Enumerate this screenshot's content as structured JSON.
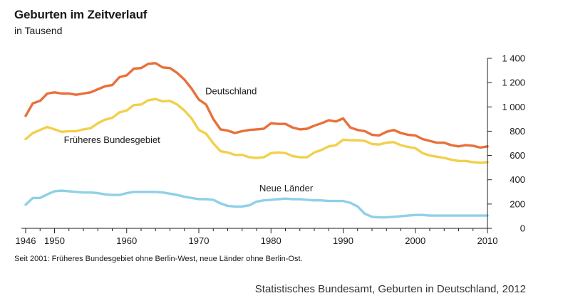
{
  "chart_data": {
    "type": "line",
    "title": "Geburten im Zeitverlauf",
    "subtitle": "in Tausend",
    "footnote": "Seit 2001: Früheres Bundesgebiet ohne Berlin-West, neue Länder ohne Berlin-Ost.",
    "source": "Statistisches Bundesamt, Geburten in Deutschland, 2012",
    "xlim": [
      1946,
      2010
    ],
    "ylim": [
      0,
      1400
    ],
    "x_tick_labels": [
      "1946",
      "1950",
      "1960",
      "1970",
      "1980",
      "1990",
      "2000",
      "2010"
    ],
    "x_minor_ticks": [
      1946,
      1948,
      1950,
      1952,
      1954,
      1956,
      1958,
      1960,
      1962,
      1964,
      1966,
      1968,
      1970,
      1972,
      1974,
      1976,
      1978,
      1980,
      1982,
      1984,
      1986,
      1988,
      1990,
      1992,
      1994,
      1996,
      1998,
      2000,
      2002,
      2004,
      2006,
      2008,
      2010
    ],
    "y_tick_labels": [
      "0",
      "200",
      "400",
      "600",
      "800",
      "1 000",
      "1 200",
      "1 400"
    ],
    "y_ticks": [
      0,
      200,
      400,
      600,
      800,
      1000,
      1200,
      1400
    ],
    "grid": false,
    "x": [
      1946,
      1947,
      1948,
      1949,
      1950,
      1951,
      1952,
      1953,
      1954,
      1955,
      1956,
      1957,
      1958,
      1959,
      1960,
      1961,
      1962,
      1963,
      1964,
      1965,
      1966,
      1967,
      1968,
      1969,
      1970,
      1971,
      1972,
      1973,
      1974,
      1975,
      1976,
      1977,
      1978,
      1979,
      1980,
      1981,
      1982,
      1983,
      1984,
      1985,
      1986,
      1987,
      1988,
      1989,
      1990,
      1991,
      1992,
      1993,
      1994,
      1995,
      1996,
      1997,
      1998,
      1999,
      2000,
      2001,
      2002,
      2003,
      2004,
      2005,
      2006,
      2007,
      2008,
      2009,
      2010
    ],
    "series": [
      {
        "name": "Deutschland",
        "color": "#e8703a",
        "label_year": 1970.9,
        "label_value": 1103,
        "values": [
          926,
          1030,
          1050,
          1110,
          1120,
          1110,
          1110,
          1100,
          1110,
          1120,
          1145,
          1170,
          1180,
          1245,
          1260,
          1315,
          1320,
          1355,
          1360,
          1325,
          1320,
          1280,
          1225,
          1150,
          1060,
          1020,
          900,
          815,
          805,
          785,
          800,
          810,
          815,
          820,
          865,
          860,
          860,
          830,
          815,
          820,
          845,
          865,
          890,
          880,
          905,
          830,
          810,
          800,
          770,
          765,
          795,
          810,
          785,
          770,
          765,
          735,
          720,
          705,
          705,
          685,
          675,
          685,
          680,
          665,
          675
        ]
      },
      {
        "name": "Früheres Bundesgebiet",
        "color": "#f1d04b",
        "label_year": 1951.3,
        "label_value": 703,
        "values": [
          735,
          785,
          810,
          835,
          815,
          795,
          800,
          800,
          815,
          825,
          865,
          895,
          910,
          955,
          970,
          1015,
          1020,
          1055,
          1065,
          1045,
          1050,
          1020,
          970,
          905,
          810,
          780,
          700,
          635,
          625,
          605,
          605,
          585,
          580,
          585,
          620,
          625,
          620,
          595,
          585,
          585,
          625,
          645,
          675,
          685,
          730,
          725,
          725,
          720,
          695,
          690,
          705,
          710,
          685,
          670,
          660,
          620,
          600,
          590,
          580,
          565,
          555,
          555,
          545,
          540,
          545
        ]
      },
      {
        "name": "Neue Länder",
        "color": "#8fd0e8",
        "label_year": 1978.4,
        "label_value": 305,
        "values": [
          195,
          250,
          250,
          280,
          305,
          310,
          305,
          300,
          295,
          295,
          290,
          280,
          275,
          275,
          290,
          300,
          300,
          300,
          300,
          295,
          285,
          275,
          260,
          250,
          240,
          240,
          235,
          205,
          185,
          180,
          180,
          190,
          220,
          230,
          235,
          240,
          245,
          240,
          240,
          235,
          230,
          230,
          225,
          225,
          225,
          210,
          180,
          120,
          95,
          90,
          90,
          95,
          100,
          105,
          110,
          110,
          105,
          105,
          105,
          105,
          105,
          105,
          105,
          105,
          105
        ]
      }
    ]
  }
}
